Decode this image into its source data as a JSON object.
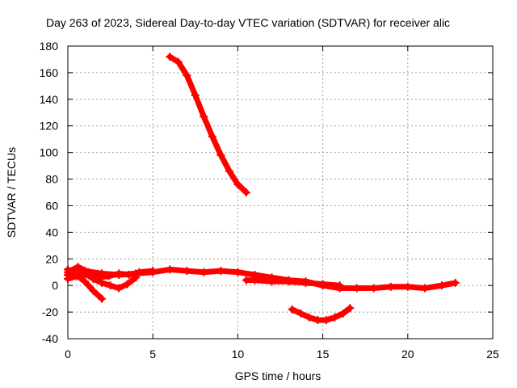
{
  "chart_data": {
    "type": "scatter",
    "title": "Day 263 of 2023, Sidereal Day-to-day VTEC variation (SDTVAR) for receiver alic",
    "xlabel": "GPS time / hours",
    "ylabel": "SDTVAR / TECUs",
    "xlim": [
      0,
      25
    ],
    "ylim": [
      -40,
      180
    ],
    "xticks": [
      0,
      5,
      10,
      15,
      20,
      25
    ],
    "yticks": [
      -40,
      -20,
      0,
      20,
      40,
      60,
      80,
      100,
      120,
      140,
      160,
      180
    ],
    "grid": true,
    "marker_color": "#ff0000",
    "series": [
      {
        "name": "arc-high",
        "x": [
          6.0,
          6.5,
          7.0,
          7.5,
          8.0,
          8.5,
          9.0,
          9.5,
          10.0,
          10.5
        ],
        "y": [
          172,
          168,
          158,
          143,
          127,
          112,
          98,
          86,
          76,
          70
        ]
      },
      {
        "name": "arc-baseline",
        "x": [
          0,
          1,
          2,
          3,
          4,
          5,
          6,
          7,
          8,
          9,
          10,
          11,
          12,
          13,
          14,
          15,
          16,
          17,
          18,
          19,
          20,
          21,
          22,
          22.8
        ],
        "y": [
          8,
          11,
          9,
          8,
          9,
          10,
          12,
          11,
          10,
          11,
          10,
          8,
          6,
          4,
          3,
          0,
          -2,
          -2,
          -2,
          -1,
          -1,
          -2,
          0,
          2
        ]
      },
      {
        "name": "arc-low-left",
        "x": [
          0,
          0.5,
          1.0,
          1.5,
          2.0
        ],
        "y": [
          12,
          8,
          3,
          -4,
          -10
        ]
      },
      {
        "name": "arc-mid-left",
        "x": [
          0,
          0.5,
          1.0,
          1.5,
          2.0,
          2.5,
          3.0,
          3.5,
          4.0
        ],
        "y": [
          5,
          7,
          9,
          5,
          2,
          0,
          -2,
          1,
          6
        ]
      },
      {
        "name": "arc-upper-left",
        "x": [
          0,
          0.6,
          1.2,
          1.8,
          2.4,
          3.0,
          3.6,
          4.2,
          5.0
        ],
        "y": [
          10,
          14,
          10,
          6,
          7,
          9,
          8,
          10,
          11
        ]
      },
      {
        "name": "arc-secondary",
        "x": [
          10.5,
          11,
          12,
          13,
          14,
          15,
          16
        ],
        "y": [
          4,
          4,
          3,
          3,
          2,
          1,
          0
        ]
      },
      {
        "name": "arc-dip",
        "x": [
          13.2,
          13.7,
          14.2,
          14.7,
          15.2,
          15.7,
          16.2,
          16.6
        ],
        "y": [
          -18,
          -21,
          -24,
          -26,
          -26,
          -24,
          -21,
          -17
        ]
      }
    ]
  }
}
